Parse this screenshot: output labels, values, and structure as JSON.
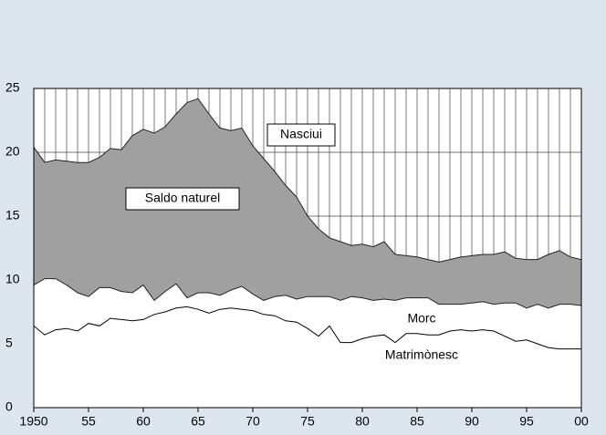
{
  "chart_data": {
    "type": "area",
    "x": [
      1950,
      1951,
      1952,
      1953,
      1954,
      1955,
      1956,
      1957,
      1958,
      1959,
      1960,
      1961,
      1962,
      1963,
      1964,
      1965,
      1966,
      1967,
      1968,
      1969,
      1970,
      1971,
      1972,
      1973,
      1974,
      1975,
      1976,
      1977,
      1978,
      1979,
      1980,
      1981,
      1982,
      1983,
      1984,
      1985,
      1986,
      1987,
      1988,
      1989,
      1990,
      1991,
      1992,
      1993,
      1994,
      1995,
      1996,
      1997,
      1998,
      1999,
      2000
    ],
    "series": [
      {
        "name": "Nasciui",
        "color": "#a0a0a0",
        "values": [
          20.4,
          19.2,
          19.4,
          19.3,
          19.2,
          19.2,
          19.6,
          20.3,
          20.2,
          21.3,
          21.8,
          21.5,
          22.0,
          23.0,
          23.9,
          24.2,
          23.0,
          21.9,
          21.7,
          21.9,
          20.5,
          19.5,
          18.5,
          17.4,
          16.5,
          15.0,
          14.0,
          13.3,
          13.0,
          12.7,
          12.8,
          12.6,
          13.0,
          12.0,
          11.9,
          11.8,
          11.6,
          11.4,
          11.6,
          11.8,
          11.9,
          12.0,
          12.0,
          12.2,
          11.7,
          11.6,
          11.6,
          12.0,
          12.3,
          11.8,
          11.6
        ]
      },
      {
        "name": "Morc",
        "color": "#ffffff",
        "values": [
          9.6,
          10.1,
          10.1,
          9.6,
          9.0,
          8.7,
          9.4,
          9.4,
          9.1,
          9.0,
          9.6,
          8.4,
          9.1,
          9.7,
          8.6,
          9.0,
          9.0,
          8.8,
          9.2,
          9.5,
          8.9,
          8.4,
          8.7,
          8.8,
          8.5,
          8.7,
          8.7,
          8.7,
          8.4,
          8.7,
          8.6,
          8.4,
          8.5,
          8.4,
          8.6,
          8.6,
          8.6,
          8.1,
          8.1,
          8.1,
          8.2,
          8.3,
          8.1,
          8.2,
          8.2,
          7.8,
          8.1,
          7.8,
          8.1,
          8.1,
          8.0
        ]
      },
      {
        "name": "Matrimònesc",
        "color": "#000000",
        "values": [
          6.4,
          5.7,
          6.1,
          6.2,
          6.0,
          6.6,
          6.4,
          7.0,
          6.9,
          6.8,
          6.9,
          7.3,
          7.5,
          7.8,
          7.9,
          7.7,
          7.4,
          7.7,
          7.8,
          7.7,
          7.6,
          7.3,
          7.2,
          6.8,
          6.7,
          6.2,
          5.6,
          6.4,
          5.1,
          5.1,
          5.4,
          5.6,
          5.7,
          5.1,
          5.8,
          5.8,
          5.7,
          5.7,
          6.0,
          6.1,
          6.0,
          6.1,
          6.0,
          5.6,
          5.2,
          5.3,
          5.0,
          4.7,
          4.6,
          4.6,
          4.6
        ]
      }
    ],
    "annotations": [
      "Saldo naturel"
    ],
    "xlim": [
      1950,
      2000
    ],
    "xticks": [
      1950,
      {
        "value": 1955,
        "label": "55"
      },
      {
        "value": 1960,
        "label": "60"
      },
      {
        "value": 1965,
        "label": "65"
      },
      {
        "value": 1970,
        "label": "70"
      },
      {
        "value": 1975,
        "label": "75"
      },
      {
        "value": 1980,
        "label": "80"
      },
      {
        "value": 1985,
        "label": "85"
      },
      {
        "value": 1990,
        "label": "90"
      },
      {
        "value": 1995,
        "label": "95"
      },
      {
        "value": 2000,
        "label": "00"
      }
    ],
    "ylim": [
      0,
      25
    ],
    "yticks": [
      0,
      5,
      10,
      15,
      20,
      25
    ],
    "grid": true
  }
}
